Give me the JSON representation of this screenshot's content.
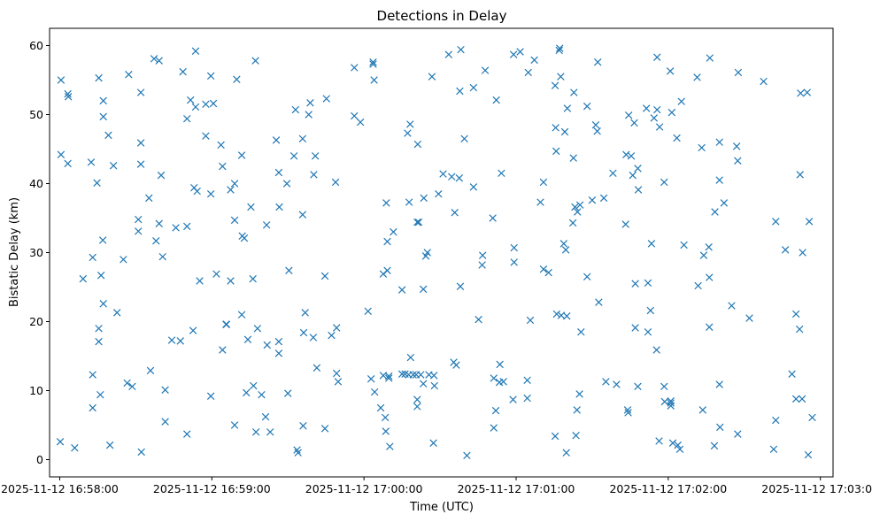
{
  "chart_data": {
    "type": "scatter",
    "title": "Detections in Delay",
    "xlabel": "Time (UTC)",
    "ylabel": "Bistatic Delay (km)",
    "marker": "x",
    "color": "#1f77b4",
    "grid": false,
    "x_unit": "seconds after 2025-11-12 16:58:00",
    "xlim": [
      -4,
      305
    ],
    "ylim": [
      -2.5,
      62.5
    ],
    "x_ticks": [
      {
        "value": 0,
        "label": "2025-11-12 16:58:00"
      },
      {
        "value": 60,
        "label": "2025-11-12 16:59:00"
      },
      {
        "value": 120,
        "label": "2025-11-12 17:00:00"
      },
      {
        "value": 180,
        "label": "2025-11-12 17:01:00"
      },
      {
        "value": 240,
        "label": "2025-11-12 17:02:00"
      },
      {
        "value": 300,
        "label": "2025-11-12 17:03:00"
      }
    ],
    "y_ticks": [
      {
        "value": 0,
        "label": "0"
      },
      {
        "value": 10,
        "label": "10"
      },
      {
        "value": 20,
        "label": "20"
      },
      {
        "value": 30,
        "label": "30"
      },
      {
        "value": 40,
        "label": "40"
      },
      {
        "value": 50,
        "label": "50"
      },
      {
        "value": 60,
        "label": "60"
      }
    ],
    "points": [
      [
        0.2,
        2.6
      ],
      [
        0.5,
        55
      ],
      [
        0.5,
        44.2
      ],
      [
        3.2,
        42.9
      ],
      [
        3.2,
        53
      ],
      [
        3.4,
        52.6
      ],
      [
        5.9,
        1.7
      ],
      [
        9.2,
        26.2
      ],
      [
        12.4,
        43.1
      ],
      [
        13,
        29.3
      ],
      [
        13,
        12.3
      ],
      [
        13,
        7.5
      ],
      [
        14.7,
        40.1
      ],
      [
        15.4,
        55.3
      ],
      [
        15.4,
        19
      ],
      [
        15.4,
        17.1
      ],
      [
        16,
        9.4
      ],
      [
        16.3,
        26.7
      ],
      [
        17,
        31.8
      ],
      [
        17.2,
        52
      ],
      [
        17.2,
        49.7
      ],
      [
        17.2,
        22.6
      ],
      [
        19.2,
        47
      ],
      [
        19.8,
        2.1
      ],
      [
        21.2,
        42.6
      ],
      [
        22.6,
        21.3
      ],
      [
        25.1,
        29
      ],
      [
        26.6,
        11.1
      ],
      [
        27.2,
        55.8
      ],
      [
        28.6,
        10.6
      ],
      [
        31,
        34.8
      ],
      [
        31,
        33.1
      ],
      [
        32,
        45.9
      ],
      [
        32,
        42.8
      ],
      [
        32,
        53.2
      ],
      [
        32.2,
        1.1
      ],
      [
        35.2,
        37.9
      ],
      [
        35.8,
        12.9
      ],
      [
        37.2,
        58.1
      ],
      [
        38,
        31.7
      ],
      [
        39.2,
        34.2
      ],
      [
        39.2,
        57.8
      ],
      [
        40,
        41.2
      ],
      [
        40.6,
        29.4
      ],
      [
        41.6,
        10.1
      ],
      [
        41.6,
        5.5
      ],
      [
        44.2,
        17.3
      ],
      [
        45.8,
        33.6
      ],
      [
        47.6,
        17.2
      ],
      [
        48.6,
        56.2
      ],
      [
        50.2,
        33.8
      ],
      [
        50.2,
        49.4
      ],
      [
        50.2,
        3.7
      ],
      [
        51.6,
        52.1
      ],
      [
        52.6,
        18.7
      ],
      [
        53,
        39.4
      ],
      [
        53.6,
        59.2
      ],
      [
        53.6,
        51.1
      ],
      [
        54.2,
        38.9
      ],
      [
        55.2,
        25.9
      ],
      [
        57.6,
        51.5
      ],
      [
        57.6,
        46.9
      ],
      [
        59.6,
        38.5
      ],
      [
        59.6,
        55.6
      ],
      [
        59.6,
        9.2
      ],
      [
        60.6,
        51.6
      ],
      [
        61.8,
        26.9
      ],
      [
        63.6,
        45.6
      ],
      [
        64.2,
        42.5
      ],
      [
        64.2,
        15.9
      ],
      [
        65.6,
        19.6
      ],
      [
        65.8,
        19.6
      ],
      [
        67.4,
        39.1
      ],
      [
        67.4,
        25.9
      ],
      [
        69,
        40
      ],
      [
        69,
        34.7
      ],
      [
        69,
        5
      ],
      [
        69.8,
        55.1
      ],
      [
        71.8,
        44.1
      ],
      [
        71.8,
        21
      ],
      [
        72,
        32.4
      ],
      [
        72.8,
        32.1
      ],
      [
        73.6,
        9.7
      ],
      [
        74.2,
        17.4
      ],
      [
        75.4,
        36.6
      ],
      [
        76.2,
        26.2
      ],
      [
        76.4,
        10.7
      ],
      [
        77.2,
        57.8
      ],
      [
        77.4,
        4
      ],
      [
        78,
        19
      ],
      [
        79.6,
        9.4
      ],
      [
        81.2,
        6.2
      ],
      [
        81.6,
        34
      ],
      [
        81.8,
        16.6
      ],
      [
        83,
        4
      ],
      [
        85.4,
        46.3
      ],
      [
        86.4,
        41.6
      ],
      [
        86.4,
        17.1
      ],
      [
        86.4,
        15.4
      ],
      [
        86.6,
        36.6
      ],
      [
        89.6,
        40
      ],
      [
        90,
        9.6
      ],
      [
        90.4,
        27.4
      ],
      [
        92.4,
        44
      ],
      [
        93,
        50.7
      ],
      [
        93.6,
        1.4
      ],
      [
        94,
        1
      ],
      [
        95.8,
        46.5
      ],
      [
        95.8,
        35.5
      ],
      [
        96,
        4.9
      ],
      [
        96.2,
        18.4
      ],
      [
        96.8,
        21.3
      ],
      [
        98.2,
        50
      ],
      [
        98.8,
        51.7
      ],
      [
        100,
        17.7
      ],
      [
        100.2,
        41.3
      ],
      [
        100.8,
        44
      ],
      [
        101.4,
        13.3
      ],
      [
        104.6,
        4.5
      ],
      [
        104.6,
        26.6
      ],
      [
        105.2,
        52.3
      ],
      [
        107.2,
        18
      ],
      [
        108.8,
        40.2
      ],
      [
        109.2,
        12.5
      ],
      [
        109.2,
        19.1
      ],
      [
        109.8,
        11.3
      ],
      [
        116.2,
        49.8
      ],
      [
        116.2,
        56.8
      ],
      [
        118.6,
        48.9
      ],
      [
        121.6,
        21.5
      ],
      [
        122.8,
        11.7
      ],
      [
        123.6,
        57.6
      ],
      [
        123.6,
        57.3
      ],
      [
        124,
        55
      ],
      [
        124.2,
        9.8
      ],
      [
        126.6,
        7.5
      ],
      [
        127.6,
        26.9
      ],
      [
        127.6,
        12.2
      ],
      [
        128.4,
        6.1
      ],
      [
        128.6,
        4.1
      ],
      [
        128.8,
        37.2
      ],
      [
        129.2,
        27.4
      ],
      [
        129.2,
        31.6
      ],
      [
        129.8,
        11.8
      ],
      [
        129.8,
        12.1
      ],
      [
        130.2,
        1.9
      ],
      [
        131.6,
        33
      ],
      [
        135,
        24.6
      ],
      [
        135,
        12.4
      ],
      [
        136.2,
        12.4
      ],
      [
        137.2,
        47.3
      ],
      [
        137.6,
        12.3
      ],
      [
        137.8,
        37.3
      ],
      [
        138.2,
        48.6
      ],
      [
        138.4,
        14.8
      ],
      [
        139.4,
        12.3
      ],
      [
        140.6,
        12.3
      ],
      [
        141,
        8.7
      ],
      [
        141,
        7.7
      ],
      [
        141,
        34.4
      ],
      [
        141.2,
        45.7
      ],
      [
        141.6,
        34.4
      ],
      [
        142.4,
        12.3
      ],
      [
        143.4,
        24.7
      ],
      [
        143.4,
        11
      ],
      [
        143.6,
        37.9
      ],
      [
        144.4,
        29.5
      ],
      [
        145,
        30
      ],
      [
        145.6,
        12.3
      ],
      [
        146.8,
        55.5
      ],
      [
        147.4,
        2.4
      ],
      [
        147.6,
        12.2
      ],
      [
        147.8,
        10.7
      ],
      [
        149.4,
        38.5
      ],
      [
        151.2,
        41.4
      ],
      [
        153.4,
        58.7
      ],
      [
        154.6,
        41
      ],
      [
        155.4,
        14.1
      ],
      [
        155.8,
        35.8
      ],
      [
        156.4,
        13.7
      ],
      [
        157.6,
        40.8
      ],
      [
        157.8,
        53.4
      ],
      [
        158,
        25.1
      ],
      [
        158.2,
        59.4
      ],
      [
        159.6,
        46.5
      ],
      [
        160.6,
        0.6
      ],
      [
        163.2,
        53.9
      ],
      [
        163.2,
        39.5
      ],
      [
        165.2,
        20.3
      ],
      [
        166.6,
        28.2
      ],
      [
        166.8,
        29.6
      ],
      [
        167.8,
        56.4
      ],
      [
        170.8,
        35
      ],
      [
        171.2,
        4.6
      ],
      [
        171.2,
        11.8
      ],
      [
        172,
        7.1
      ],
      [
        172.2,
        52.1
      ],
      [
        173.4,
        11.2
      ],
      [
        173.6,
        13.8
      ],
      [
        174.2,
        41.5
      ],
      [
        175,
        11.3
      ],
      [
        178.8,
        8.7
      ],
      [
        179,
        58.7
      ],
      [
        179.2,
        28.6
      ],
      [
        179.2,
        30.7
      ],
      [
        181.6,
        59.1
      ],
      [
        184.4,
        11.5
      ],
      [
        184.4,
        8.9
      ],
      [
        184.8,
        56.1
      ],
      [
        185.6,
        20.2
      ],
      [
        187.2,
        57.9
      ],
      [
        189.6,
        37.3
      ],
      [
        190.8,
        40.2
      ],
      [
        190.8,
        27.6
      ],
      [
        192.8,
        27.1
      ],
      [
        195.4,
        3.4
      ],
      [
        195.4,
        54.2
      ],
      [
        195.6,
        48.1
      ],
      [
        195.8,
        44.7
      ],
      [
        196,
        21.1
      ],
      [
        197,
        59.3
      ],
      [
        197.2,
        59.6
      ],
      [
        197.6,
        55.5
      ],
      [
        197.8,
        20.9
      ],
      [
        198.8,
        31.3
      ],
      [
        199.2,
        47.5
      ],
      [
        199.6,
        30.4
      ],
      [
        199.8,
        1
      ],
      [
        200,
        20.8
      ],
      [
        200.2,
        50.9
      ],
      [
        202.4,
        34.3
      ],
      [
        202.6,
        43.7
      ],
      [
        202.8,
        53.2
      ],
      [
        203.2,
        36.6
      ],
      [
        203.6,
        3.5
      ],
      [
        204,
        7.2
      ],
      [
        204.2,
        35.9
      ],
      [
        205,
        9.5
      ],
      [
        205.2,
        36.9
      ],
      [
        205.6,
        18.5
      ],
      [
        208,
        51.2
      ],
      [
        208,
        26.5
      ],
      [
        210,
        37.6
      ],
      [
        211.4,
        48.5
      ],
      [
        212,
        47.6
      ],
      [
        212.2,
        57.6
      ],
      [
        212.6,
        22.8
      ],
      [
        214.6,
        37.9
      ],
      [
        215.4,
        11.3
      ],
      [
        218.2,
        41.5
      ],
      [
        219.6,
        10.9
      ],
      [
        223.2,
        34.1
      ],
      [
        223.4,
        44.2
      ],
      [
        224,
        7.2
      ],
      [
        224.2,
        6.8
      ],
      [
        224.4,
        49.9
      ],
      [
        225.4,
        44
      ],
      [
        226,
        41.2
      ],
      [
        226.6,
        48.8
      ],
      [
        227,
        19.1
      ],
      [
        227,
        25.5
      ],
      [
        228,
        10.6
      ],
      [
        228,
        42.2
      ],
      [
        228.2,
        39.1
      ],
      [
        231.4,
        50.9
      ],
      [
        232,
        25.6
      ],
      [
        232,
        18.5
      ],
      [
        233,
        21.6
      ],
      [
        233.4,
        31.3
      ],
      [
        234.4,
        49.5
      ],
      [
        235.4,
        15.9
      ],
      [
        235.6,
        58.3
      ],
      [
        235.6,
        50.7
      ],
      [
        236.4,
        2.7
      ],
      [
        236.6,
        48.2
      ],
      [
        238.4,
        40.2
      ],
      [
        238.4,
        10.6
      ],
      [
        238.6,
        8.4
      ],
      [
        240.8,
        56.3
      ],
      [
        241,
        8.2
      ],
      [
        241,
        7.8
      ],
      [
        241,
        8.5
      ],
      [
        241.4,
        50.3
      ],
      [
        241.8,
        2.4
      ],
      [
        243.4,
        46.6
      ],
      [
        243.8,
        2.1
      ],
      [
        244.6,
        1.5
      ],
      [
        245.2,
        51.9
      ],
      [
        246.2,
        31.1
      ],
      [
        251.4,
        55.4
      ],
      [
        251.8,
        25.2
      ],
      [
        253.2,
        45.2
      ],
      [
        253.6,
        7.2
      ],
      [
        254,
        29.6
      ],
      [
        256,
        30.8
      ],
      [
        256.2,
        19.2
      ],
      [
        256.2,
        26.4
      ],
      [
        256.4,
        58.2
      ],
      [
        258.2,
        2
      ],
      [
        258.4,
        35.9
      ],
      [
        260.2,
        46
      ],
      [
        260.2,
        40.5
      ],
      [
        260.2,
        10.9
      ],
      [
        260.4,
        4.7
      ],
      [
        262,
        37.2
      ],
      [
        265,
        22.3
      ],
      [
        267,
        45.4
      ],
      [
        267.4,
        43.3
      ],
      [
        267.4,
        3.7
      ],
      [
        267.6,
        56.1
      ],
      [
        272,
        20.5
      ],
      [
        277.6,
        54.8
      ],
      [
        281.6,
        1.5
      ],
      [
        282.4,
        34.5
      ],
      [
        282.4,
        5.7
      ],
      [
        286.2,
        30.4
      ],
      [
        288.8,
        12.4
      ],
      [
        290.4,
        21.1
      ],
      [
        290.4,
        8.8
      ],
      [
        291.8,
        18.9
      ],
      [
        292,
        41.3
      ],
      [
        292.2,
        53.1
      ],
      [
        292.8,
        8.8
      ],
      [
        293,
        30
      ],
      [
        294.8,
        53.2
      ],
      [
        295.2,
        0.7
      ],
      [
        295.6,
        34.5
      ],
      [
        296.8,
        6.1
      ]
    ]
  }
}
